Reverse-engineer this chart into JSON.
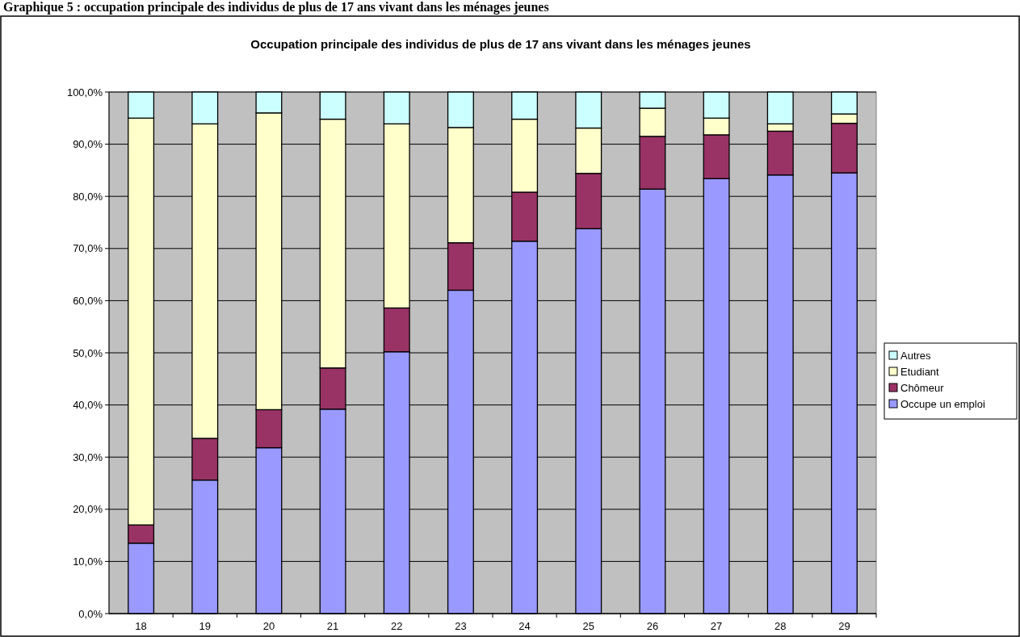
{
  "chart_data": {
    "type": "bar",
    "stacked": true,
    "title": "Occupation principale des individus de plus de 17 ans vivant dans les ménages jeunes",
    "annotations": [
      "Graphique 5 : occupation principale des individus de plus de 17 ans vivant dans les ménages jeunes"
    ],
    "categories": [
      "18",
      "19",
      "20",
      "21",
      "22",
      "23",
      "24",
      "25",
      "26",
      "27",
      "28",
      "29"
    ],
    "series": [
      {
        "name": "Occupe un emploi",
        "color": "#9999ff",
        "values": [
          13.5,
          25.6,
          31.8,
          39.2,
          50.2,
          62.0,
          71.4,
          73.8,
          81.4,
          83.4,
          84.1,
          84.5
        ]
      },
      {
        "name": "Chômeur",
        "color": "#993366",
        "values": [
          3.5,
          8.0,
          7.3,
          7.9,
          8.4,
          9.1,
          9.4,
          10.6,
          10.1,
          8.4,
          8.4,
          9.5
        ]
      },
      {
        "name": "Etudiant",
        "color": "#ffffcc",
        "values": [
          78.0,
          60.3,
          56.9,
          47.7,
          35.3,
          22.1,
          14.0,
          8.7,
          5.4,
          3.2,
          1.4,
          1.8
        ]
      },
      {
        "name": "Autres",
        "color": "#ccffff",
        "values": [
          5.0,
          6.1,
          4.0,
          5.2,
          6.1,
          6.8,
          5.2,
          6.9,
          3.1,
          5.0,
          6.1,
          4.2
        ]
      }
    ],
    "ylim": [
      0,
      100
    ],
    "yticks": [
      {
        "value": 0,
        "label": "0,0%"
      },
      {
        "value": 10,
        "label": "10,0%"
      },
      {
        "value": 20,
        "label": "20,0%"
      },
      {
        "value": 30,
        "label": "30,0%"
      },
      {
        "value": 40,
        "label": "40,0%"
      },
      {
        "value": 50,
        "label": "50,0%"
      },
      {
        "value": 60,
        "label": "60,0%"
      },
      {
        "value": 70,
        "label": "70,0%"
      },
      {
        "value": 80,
        "label": "80,0%"
      },
      {
        "value": 90,
        "label": "90,0%"
      },
      {
        "value": 100,
        "label": "100,0%"
      }
    ],
    "grid": "y",
    "legend": "right"
  }
}
